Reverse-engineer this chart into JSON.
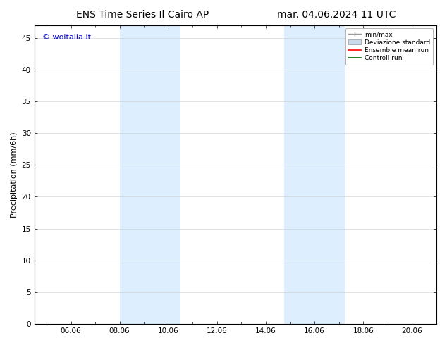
{
  "title_left": "ENS Time Series Il Cairo AP",
  "title_right": "mar. 04.06.2024 11 UTC",
  "ylabel": "Precipitation (mm/6h)",
  "xlim": [
    4.5,
    21.0
  ],
  "ylim": [
    0,
    47
  ],
  "yticks": [
    0,
    5,
    10,
    15,
    20,
    25,
    30,
    35,
    40,
    45
  ],
  "xtick_labels": [
    "06.06",
    "08.06",
    "10.06",
    "12.06",
    "14.06",
    "16.06",
    "18.06",
    "20.06"
  ],
  "xtick_positions": [
    6,
    8,
    10,
    12,
    14,
    16,
    18,
    20
  ],
  "background_color": "#ffffff",
  "plot_bg_color": "#ffffff",
  "shaded_bands": [
    {
      "x_start": 8.0,
      "x_end": 9.0,
      "color": "#ddeeff"
    },
    {
      "x_start": 9.0,
      "x_end": 10.5,
      "color": "#ddeeff"
    },
    {
      "x_start": 14.75,
      "x_end": 16.0,
      "color": "#ddeeff"
    },
    {
      "x_start": 16.0,
      "x_end": 17.25,
      "color": "#ddeeff"
    }
  ],
  "watermark_text": "© woitalia.it",
  "watermark_color": "#0000cc",
  "legend_labels": [
    "min/max",
    "Deviazione standard",
    "Ensemble mean run",
    "Controll run"
  ],
  "legend_colors": [
    "#999999",
    "#c8dced",
    "#ff0000",
    "#006600"
  ],
  "title_fontsize": 10,
  "axis_fontsize": 8,
  "tick_fontsize": 7.5,
  "watermark_fontsize": 8
}
